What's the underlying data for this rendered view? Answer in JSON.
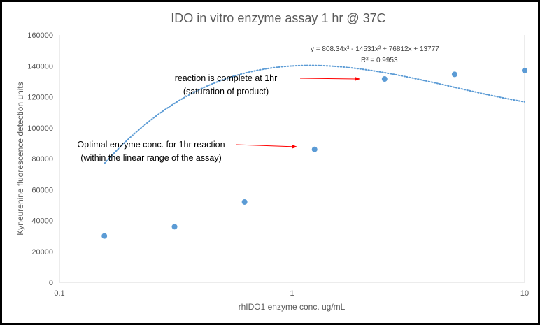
{
  "chart_data": {
    "type": "scatter",
    "title": "IDO in vitro enzyme assay 1 hr @ 37C",
    "xlabel": "rhIDO1 enzyme conc. ug/mL",
    "ylabel": "Kyneurenine fluorescence detection units",
    "x_scale": "log",
    "xlim": [
      0.1,
      10
    ],
    "ylim": [
      0,
      160000
    ],
    "x_tick_labels": [
      "0.1",
      "1",
      "10"
    ],
    "y_tick_labels": [
      "0",
      "20000",
      "40000",
      "60000",
      "80000",
      "100000",
      "120000",
      "140000",
      "160000"
    ],
    "grid": "vertical",
    "legend": "none",
    "series": [
      {
        "x": [
          0.156,
          0.3125,
          0.625,
          1.25,
          2.5,
          5,
          10
        ],
        "y": [
          30000,
          36000,
          52000,
          86000,
          131500,
          134500,
          137000
        ],
        "color": "#5b9bd5"
      }
    ],
    "trendline": {
      "kind": "polynomial",
      "order": 3,
      "variable": "x_index",
      "coefficients": [
        808.34,
        -14531,
        76812,
        13777
      ],
      "equation": "y = 808.34x³ - 14531x² + 76812x + 13777",
      "r_squared": "R² = 0.9953",
      "color": "#5b9bd5",
      "style": "dotted"
    },
    "annotations": [
      {
        "lines": [
          "reaction is complete at 1hr",
          "(saturation of product)"
        ],
        "arrow_to_x": 2.5
      },
      {
        "lines": [
          "Optimal enzyme conc. for 1hr reaction",
          "(within the linear range of the assay)"
        ],
        "arrow_to_x": 1.25
      }
    ],
    "arrow_color": "#ff0000"
  }
}
